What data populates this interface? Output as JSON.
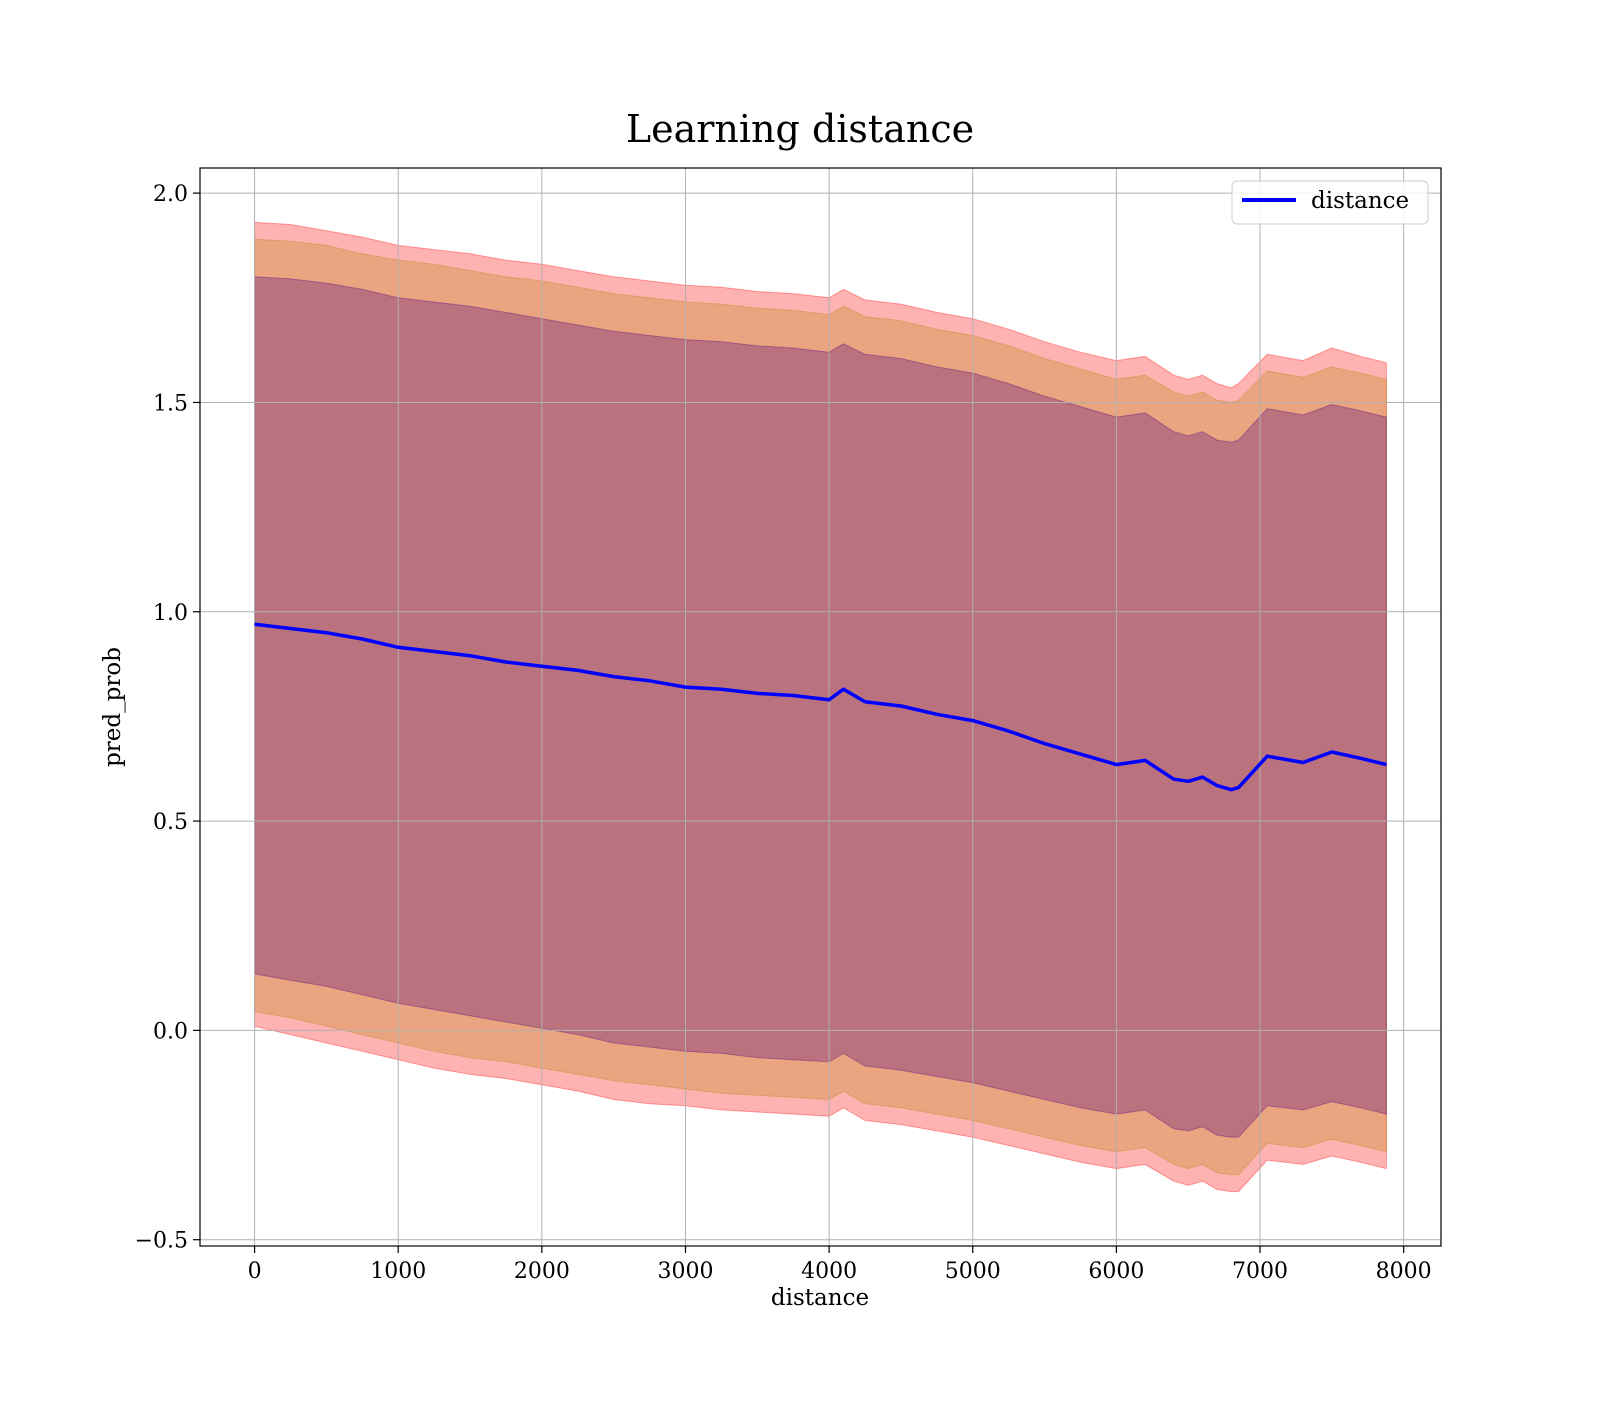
{
  "chart_data": {
    "type": "line",
    "title": "Learning distance",
    "xlabel": "distance",
    "ylabel": "pred_prob",
    "xlim": [
      -380,
      8260
    ],
    "ylim": [
      -0.515,
      2.06
    ],
    "xticks": [
      0,
      1000,
      2000,
      3000,
      4000,
      5000,
      6000,
      7000,
      8000
    ],
    "xtick_labels": [
      "0",
      "1000",
      "2000",
      "3000",
      "4000",
      "5000",
      "6000",
      "7000",
      "8000"
    ],
    "yticks": [
      -0.5,
      0.0,
      0.5,
      1.0,
      1.5,
      2.0
    ],
    "ytick_labels": [
      "−0.5",
      "0.0",
      "0.5",
      "1.0",
      "1.5",
      "2.0"
    ],
    "grid": true,
    "legend": {
      "placement": "top-right",
      "entries": [
        "distance"
      ]
    },
    "colors": {
      "line": "#0000ff",
      "band_outer": "#ff0000",
      "band_mid": "#b8860b",
      "band_inner": "#4b0082"
    },
    "series": [
      {
        "name": "distance",
        "x": [
          0,
          250,
          500,
          750,
          1000,
          1250,
          1500,
          1750,
          2000,
          2250,
          2500,
          2750,
          3000,
          3250,
          3500,
          3750,
          4000,
          4100,
          4250,
          4500,
          4750,
          5000,
          5250,
          5500,
          5750,
          6000,
          6200,
          6400,
          6500,
          6600,
          6700,
          6800,
          6850,
          7050,
          7300,
          7500,
          7700,
          7880
        ],
        "y": [
          0.97,
          0.96,
          0.95,
          0.935,
          0.915,
          0.905,
          0.895,
          0.88,
          0.87,
          0.86,
          0.845,
          0.835,
          0.82,
          0.815,
          0.805,
          0.8,
          0.79,
          0.815,
          0.785,
          0.775,
          0.755,
          0.74,
          0.715,
          0.685,
          0.66,
          0.635,
          0.645,
          0.6,
          0.595,
          0.605,
          0.585,
          0.575,
          0.58,
          0.655,
          0.64,
          0.665,
          0.65,
          0.635
        ],
        "bands": [
          {
            "level": "outer",
            "lower": [
              0.01,
              -0.01,
              -0.03,
              -0.05,
              -0.07,
              -0.09,
              -0.105,
              -0.115,
              -0.13,
              -0.145,
              -0.165,
              -0.175,
              -0.18,
              -0.19,
              -0.195,
              -0.2,
              -0.205,
              -0.185,
              -0.215,
              -0.225,
              -0.24,
              -0.255,
              -0.275,
              -0.295,
              -0.315,
              -0.33,
              -0.32,
              -0.36,
              -0.37,
              -0.36,
              -0.38,
              -0.385,
              -0.385,
              -0.31,
              -0.32,
              -0.3,
              -0.315,
              -0.33
            ],
            "upper": [
              1.93,
              1.925,
              1.91,
              1.895,
              1.875,
              1.865,
              1.855,
              1.84,
              1.83,
              1.815,
              1.8,
              1.79,
              1.78,
              1.775,
              1.765,
              1.76,
              1.75,
              1.77,
              1.745,
              1.735,
              1.715,
              1.7,
              1.675,
              1.645,
              1.62,
              1.6,
              1.61,
              1.565,
              1.555,
              1.565,
              1.545,
              1.535,
              1.545,
              1.615,
              1.6,
              1.63,
              1.61,
              1.595
            ]
          },
          {
            "level": "mid",
            "lower": [
              0.045,
              0.03,
              0.01,
              -0.01,
              -0.03,
              -0.05,
              -0.065,
              -0.075,
              -0.09,
              -0.105,
              -0.12,
              -0.13,
              -0.14,
              -0.15,
              -0.155,
              -0.16,
              -0.165,
              -0.145,
              -0.175,
              -0.185,
              -0.2,
              -0.215,
              -0.235,
              -0.255,
              -0.275,
              -0.29,
              -0.28,
              -0.32,
              -0.33,
              -0.32,
              -0.34,
              -0.345,
              -0.345,
              -0.27,
              -0.28,
              -0.26,
              -0.275,
              -0.29
            ],
            "upper": [
              1.89,
              1.885,
              1.875,
              1.855,
              1.84,
              1.83,
              1.815,
              1.8,
              1.79,
              1.775,
              1.76,
              1.75,
              1.74,
              1.735,
              1.725,
              1.72,
              1.71,
              1.73,
              1.705,
              1.695,
              1.675,
              1.66,
              1.635,
              1.605,
              1.58,
              1.555,
              1.565,
              1.525,
              1.515,
              1.525,
              1.505,
              1.5,
              1.505,
              1.575,
              1.56,
              1.585,
              1.57,
              1.555
            ]
          },
          {
            "level": "inner",
            "lower": [
              0.135,
              0.12,
              0.105,
              0.085,
              0.065,
              0.05,
              0.035,
              0.02,
              0.005,
              -0.01,
              -0.03,
              -0.04,
              -0.05,
              -0.055,
              -0.065,
              -0.07,
              -0.075,
              -0.055,
              -0.085,
              -0.095,
              -0.11,
              -0.125,
              -0.145,
              -0.165,
              -0.185,
              -0.2,
              -0.19,
              -0.235,
              -0.24,
              -0.23,
              -0.25,
              -0.255,
              -0.255,
              -0.18,
              -0.19,
              -0.17,
              -0.185,
              -0.2
            ],
            "upper": [
              1.8,
              1.795,
              1.785,
              1.77,
              1.75,
              1.74,
              1.73,
              1.715,
              1.7,
              1.685,
              1.67,
              1.66,
              1.65,
              1.645,
              1.635,
              1.63,
              1.62,
              1.64,
              1.615,
              1.605,
              1.585,
              1.57,
              1.545,
              1.515,
              1.49,
              1.465,
              1.475,
              1.43,
              1.42,
              1.43,
              1.41,
              1.405,
              1.41,
              1.485,
              1.47,
              1.495,
              1.48,
              1.465
            ]
          }
        ]
      }
    ]
  }
}
